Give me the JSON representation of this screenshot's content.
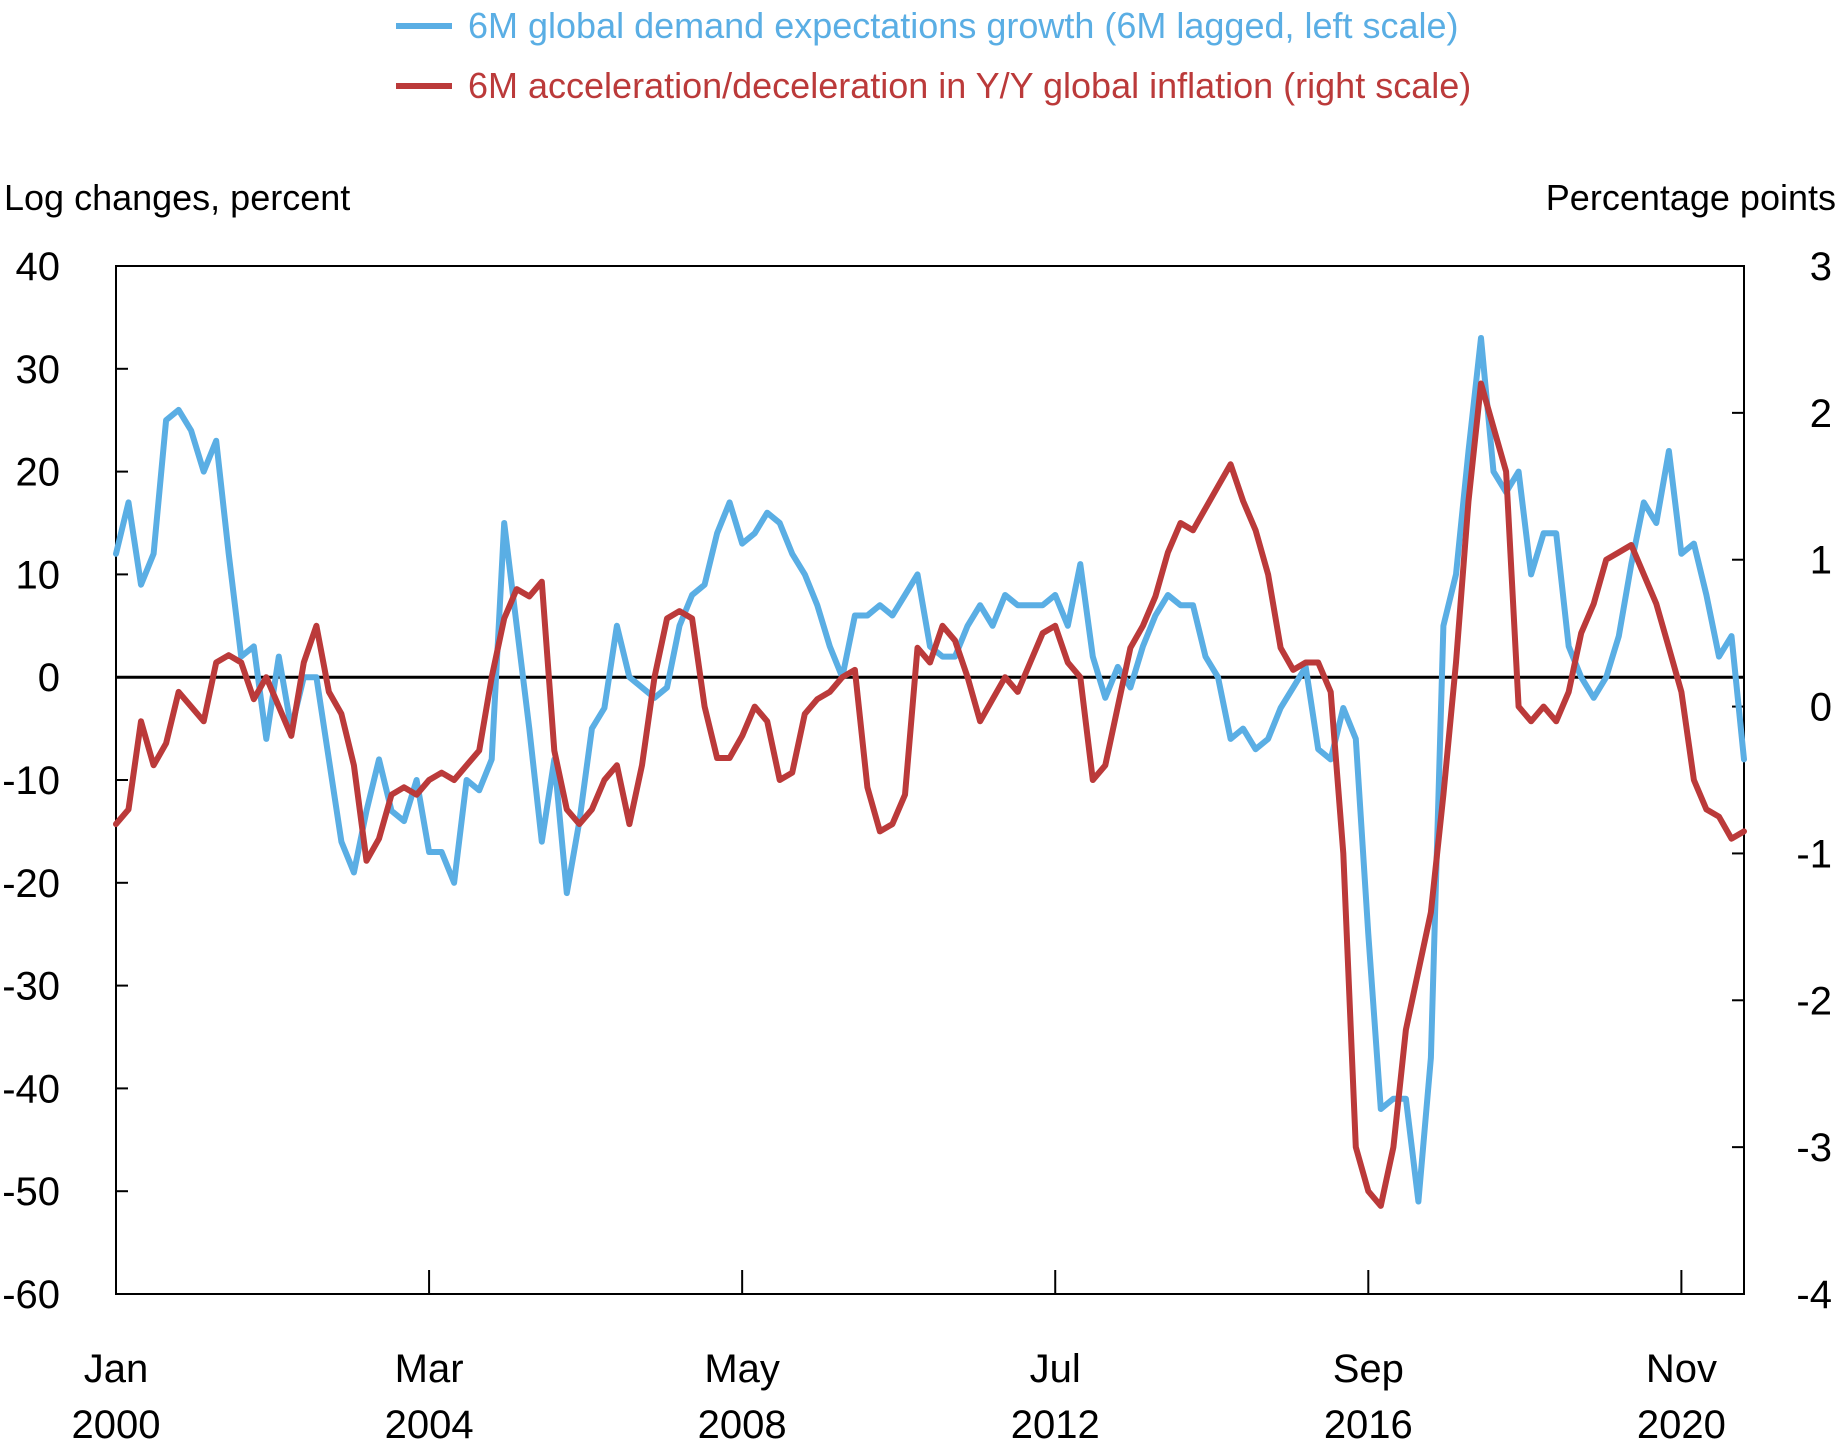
{
  "chart_data": {
    "type": "line",
    "legend": [
      {
        "label": "6M global demand expectations growth (6M lagged, left scale)",
        "color": "#5aaee4"
      },
      {
        "label": "6M acceleration/deceleration in Y/Y global inflation (right scale)",
        "color": "#bb3a3a"
      }
    ],
    "legend_position": "top-center",
    "ylabel_left": "Log changes, percent",
    "ylabel_right": "Percentage points",
    "ylim_left": [
      -60,
      40
    ],
    "ylim_right": [
      -4,
      3
    ],
    "yticks_left": [
      40,
      30,
      20,
      10,
      0,
      -10,
      -20,
      -30,
      -40,
      -50,
      -60
    ],
    "yticks_right": [
      3,
      2,
      1,
      0,
      -1,
      -2,
      -3,
      -4
    ],
    "xrange": [
      "2000-01",
      "2021-09"
    ],
    "xticks": [
      {
        "date": "2000-01",
        "month": "Jan",
        "year": "2000"
      },
      {
        "date": "2004-03",
        "month": "Mar",
        "year": "2004"
      },
      {
        "date": "2008-05",
        "month": "May",
        "year": "2008"
      },
      {
        "date": "2012-07",
        "month": "Jul",
        "year": "2012"
      },
      {
        "date": "2016-09",
        "month": "Sep",
        "year": "2016"
      },
      {
        "date": "2020-11",
        "month": "Nov",
        "year": "2020"
      }
    ],
    "zero_line": true,
    "series": [
      {
        "name": "6M global demand expectations growth (6M lagged, left scale)",
        "axis": "left",
        "color": "#5aaee4",
        "points": [
          [
            "2000-01",
            12
          ],
          [
            "2000-03",
            17
          ],
          [
            "2000-05",
            9
          ],
          [
            "2000-07",
            12
          ],
          [
            "2000-09",
            25
          ],
          [
            "2000-11",
            26
          ],
          [
            "2001-01",
            24
          ],
          [
            "2001-03",
            20
          ],
          [
            "2001-05",
            23
          ],
          [
            "2001-07",
            12
          ],
          [
            "2001-09",
            2
          ],
          [
            "2001-11",
            3
          ],
          [
            "2002-01",
            -6
          ],
          [
            "2002-03",
            2
          ],
          [
            "2002-05",
            -5
          ],
          [
            "2002-07",
            0
          ],
          [
            "2002-09",
            0
          ],
          [
            "2002-11",
            -8
          ],
          [
            "2003-01",
            -16
          ],
          [
            "2003-03",
            -19
          ],
          [
            "2003-05",
            -13
          ],
          [
            "2003-07",
            -8
          ],
          [
            "2003-09",
            -13
          ],
          [
            "2003-11",
            -14
          ],
          [
            "2004-01",
            -10
          ],
          [
            "2004-03",
            -17
          ],
          [
            "2004-05",
            -17
          ],
          [
            "2004-07",
            -20
          ],
          [
            "2004-09",
            -10
          ],
          [
            "2004-11",
            -11
          ],
          [
            "2005-01",
            -8
          ],
          [
            "2005-03",
            15
          ],
          [
            "2005-05",
            5
          ],
          [
            "2005-07",
            -5
          ],
          [
            "2005-09",
            -16
          ],
          [
            "2005-11",
            -8
          ],
          [
            "2006-01",
            -21
          ],
          [
            "2006-03",
            -14
          ],
          [
            "2006-05",
            -5
          ],
          [
            "2006-07",
            -3
          ],
          [
            "2006-09",
            5
          ],
          [
            "2006-11",
            0
          ],
          [
            "2007-01",
            -1
          ],
          [
            "2007-03",
            -2
          ],
          [
            "2007-05",
            -1
          ],
          [
            "2007-07",
            5
          ],
          [
            "2007-09",
            8
          ],
          [
            "2007-11",
            9
          ],
          [
            "2008-01",
            14
          ],
          [
            "2008-03",
            17
          ],
          [
            "2008-05",
            13
          ],
          [
            "2008-07",
            14
          ],
          [
            "2008-09",
            16
          ],
          [
            "2008-11",
            15
          ],
          [
            "2009-01",
            12
          ],
          [
            "2009-03",
            10
          ],
          [
            "2009-05",
            7
          ],
          [
            "2009-07",
            3
          ],
          [
            "2009-09",
            0
          ],
          [
            "2009-11",
            6
          ],
          [
            "2010-01",
            6
          ],
          [
            "2010-03",
            7
          ],
          [
            "2010-05",
            6
          ],
          [
            "2010-07",
            8
          ],
          [
            "2010-09",
            10
          ],
          [
            "2010-11",
            3
          ],
          [
            "2011-01",
            2
          ],
          [
            "2011-03",
            2
          ],
          [
            "2011-05",
            5
          ],
          [
            "2011-07",
            7
          ],
          [
            "2011-09",
            5
          ],
          [
            "2011-11",
            8
          ],
          [
            "2012-01",
            7
          ],
          [
            "2012-03",
            7
          ],
          [
            "2012-05",
            7
          ],
          [
            "2012-07",
            8
          ],
          [
            "2012-09",
            5
          ],
          [
            "2012-11",
            11
          ],
          [
            "2013-01",
            2
          ],
          [
            "2013-03",
            -2
          ],
          [
            "2013-05",
            1
          ],
          [
            "2013-07",
            -1
          ],
          [
            "2013-09",
            3
          ],
          [
            "2013-11",
            6
          ],
          [
            "2014-01",
            8
          ],
          [
            "2014-03",
            7
          ],
          [
            "2014-05",
            7
          ],
          [
            "2014-07",
            2
          ],
          [
            "2014-09",
            0
          ],
          [
            "2014-11",
            -6
          ],
          [
            "2015-01",
            -5
          ],
          [
            "2015-03",
            -7
          ],
          [
            "2015-05",
            -6
          ],
          [
            "2015-07",
            -3
          ],
          [
            "2015-09",
            -1
          ],
          [
            "2015-11",
            1
          ],
          [
            "2016-01",
            -7
          ],
          [
            "2016-03",
            -8
          ],
          [
            "2016-05",
            -3
          ],
          [
            "2016-07",
            -6
          ],
          [
            "2016-09",
            -25
          ],
          [
            "2016-11",
            -42
          ],
          [
            "2017-01",
            -41
          ],
          [
            "2017-03",
            -41
          ],
          [
            "2017-05",
            -51
          ],
          [
            "2017-07",
            -37
          ],
          [
            "2017-09",
            5
          ],
          [
            "2017-11",
            10
          ],
          [
            "2018-01",
            22
          ],
          [
            "2018-03",
            33
          ],
          [
            "2018-05",
            20
          ],
          [
            "2018-07",
            18
          ],
          [
            "2018-09",
            20
          ],
          [
            "2018-11",
            10
          ],
          [
            "2019-01",
            14
          ],
          [
            "2019-03",
            14
          ],
          [
            "2019-05",
            3
          ],
          [
            "2019-07",
            0
          ],
          [
            "2019-09",
            -2
          ],
          [
            "2019-11",
            0
          ],
          [
            "2020-01",
            4
          ],
          [
            "2020-03",
            11
          ],
          [
            "2020-05",
            17
          ],
          [
            "2020-07",
            15
          ],
          [
            "2020-09",
            22
          ],
          [
            "2020-11",
            12
          ],
          [
            "2021-01",
            13
          ],
          [
            "2021-03",
            8
          ],
          [
            "2021-05",
            2
          ],
          [
            "2021-07",
            4
          ],
          [
            "2021-09",
            -8
          ]
        ]
      },
      {
        "name": "6M acceleration/deceleration in Y/Y global inflation (right scale)",
        "axis": "right",
        "color": "#bb3a3a",
        "points": [
          [
            "2000-01",
            -0.8
          ],
          [
            "2000-03",
            -0.7
          ],
          [
            "2000-05",
            -0.1
          ],
          [
            "2000-07",
            -0.4
          ],
          [
            "2000-09",
            -0.25
          ],
          [
            "2000-11",
            0.1
          ],
          [
            "2001-01",
            0.0
          ],
          [
            "2001-03",
            -0.1
          ],
          [
            "2001-05",
            0.3
          ],
          [
            "2001-07",
            0.35
          ],
          [
            "2001-09",
            0.3
          ],
          [
            "2001-11",
            0.05
          ],
          [
            "2002-01",
            0.2
          ],
          [
            "2002-03",
            0.0
          ],
          [
            "2002-05",
            -0.2
          ],
          [
            "2002-07",
            0.3
          ],
          [
            "2002-09",
            0.55
          ],
          [
            "2002-11",
            0.1
          ],
          [
            "2003-01",
            -0.05
          ],
          [
            "2003-03",
            -0.4
          ],
          [
            "2003-05",
            -1.05
          ],
          [
            "2003-07",
            -0.9
          ],
          [
            "2003-09",
            -0.6
          ],
          [
            "2003-11",
            -0.55
          ],
          [
            "2004-01",
            -0.6
          ],
          [
            "2004-03",
            -0.5
          ],
          [
            "2004-05",
            -0.45
          ],
          [
            "2004-07",
            -0.5
          ],
          [
            "2004-09",
            -0.4
          ],
          [
            "2004-11",
            -0.3
          ],
          [
            "2005-01",
            0.2
          ],
          [
            "2005-03",
            0.6
          ],
          [
            "2005-05",
            0.8
          ],
          [
            "2005-07",
            0.75
          ],
          [
            "2005-09",
            0.85
          ],
          [
            "2005-11",
            -0.3
          ],
          [
            "2006-01",
            -0.7
          ],
          [
            "2006-03",
            -0.8
          ],
          [
            "2006-05",
            -0.7
          ],
          [
            "2006-07",
            -0.5
          ],
          [
            "2006-09",
            -0.4
          ],
          [
            "2006-11",
            -0.8
          ],
          [
            "2007-01",
            -0.4
          ],
          [
            "2007-03",
            0.2
          ],
          [
            "2007-05",
            0.6
          ],
          [
            "2007-07",
            0.65
          ],
          [
            "2007-09",
            0.6
          ],
          [
            "2007-11",
            0.0
          ],
          [
            "2008-01",
            -0.35
          ],
          [
            "2008-03",
            -0.35
          ],
          [
            "2008-05",
            -0.2
          ],
          [
            "2008-07",
            0.0
          ],
          [
            "2008-09",
            -0.1
          ],
          [
            "2008-11",
            -0.5
          ],
          [
            "2009-01",
            -0.45
          ],
          [
            "2009-03",
            -0.05
          ],
          [
            "2009-05",
            0.05
          ],
          [
            "2009-07",
            0.1
          ],
          [
            "2009-09",
            0.2
          ],
          [
            "2009-11",
            0.25
          ],
          [
            "2010-01",
            -0.55
          ],
          [
            "2010-03",
            -0.85
          ],
          [
            "2010-05",
            -0.8
          ],
          [
            "2010-07",
            -0.6
          ],
          [
            "2010-09",
            0.4
          ],
          [
            "2010-11",
            0.3
          ],
          [
            "2011-01",
            0.55
          ],
          [
            "2011-03",
            0.45
          ],
          [
            "2011-05",
            0.2
          ],
          [
            "2011-07",
            -0.1
          ],
          [
            "2011-09",
            0.05
          ],
          [
            "2011-11",
            0.2
          ],
          [
            "2012-01",
            0.1
          ],
          [
            "2012-03",
            0.3
          ],
          [
            "2012-05",
            0.5
          ],
          [
            "2012-07",
            0.55
          ],
          [
            "2012-09",
            0.3
          ],
          [
            "2012-11",
            0.2
          ],
          [
            "2013-01",
            -0.5
          ],
          [
            "2013-03",
            -0.4
          ],
          [
            "2013-05",
            0.0
          ],
          [
            "2013-07",
            0.4
          ],
          [
            "2013-09",
            0.55
          ],
          [
            "2013-11",
            0.75
          ],
          [
            "2014-01",
            1.05
          ],
          [
            "2014-03",
            1.25
          ],
          [
            "2014-05",
            1.2
          ],
          [
            "2014-07",
            1.35
          ],
          [
            "2014-09",
            1.5
          ],
          [
            "2014-11",
            1.65
          ],
          [
            "2015-01",
            1.4
          ],
          [
            "2015-03",
            1.2
          ],
          [
            "2015-05",
            0.9
          ],
          [
            "2015-07",
            0.4
          ],
          [
            "2015-09",
            0.25
          ],
          [
            "2015-11",
            0.3
          ],
          [
            "2016-01",
            0.3
          ],
          [
            "2016-03",
            0.1
          ],
          [
            "2016-05",
            -1.0
          ],
          [
            "2016-07",
            -3.0
          ],
          [
            "2016-09",
            -3.3
          ],
          [
            "2016-11",
            -3.4
          ],
          [
            "2017-01",
            -3.0
          ],
          [
            "2017-03",
            -2.2
          ],
          [
            "2017-05",
            -1.8
          ],
          [
            "2017-07",
            -1.4
          ],
          [
            "2017-09",
            -0.6
          ],
          [
            "2017-11",
            0.3
          ],
          [
            "2018-01",
            1.4
          ],
          [
            "2018-03",
            2.2
          ],
          [
            "2018-05",
            1.9
          ],
          [
            "2018-07",
            1.6
          ],
          [
            "2018-09",
            0.0
          ],
          [
            "2018-11",
            -0.1
          ],
          [
            "2019-01",
            0.0
          ],
          [
            "2019-03",
            -0.1
          ],
          [
            "2019-05",
            0.1
          ],
          [
            "2019-07",
            0.5
          ],
          [
            "2019-09",
            0.7
          ],
          [
            "2019-11",
            1.0
          ],
          [
            "2020-01",
            1.05
          ],
          [
            "2020-03",
            1.1
          ],
          [
            "2020-05",
            0.9
          ],
          [
            "2020-07",
            0.7
          ],
          [
            "2020-09",
            0.4
          ],
          [
            "2020-11",
            0.1
          ],
          [
            "2021-01",
            -0.5
          ],
          [
            "2021-03",
            -0.7
          ],
          [
            "2021-05",
            -0.75
          ],
          [
            "2021-07",
            -0.9
          ],
          [
            "2021-09",
            -0.85
          ]
        ]
      }
    ]
  }
}
